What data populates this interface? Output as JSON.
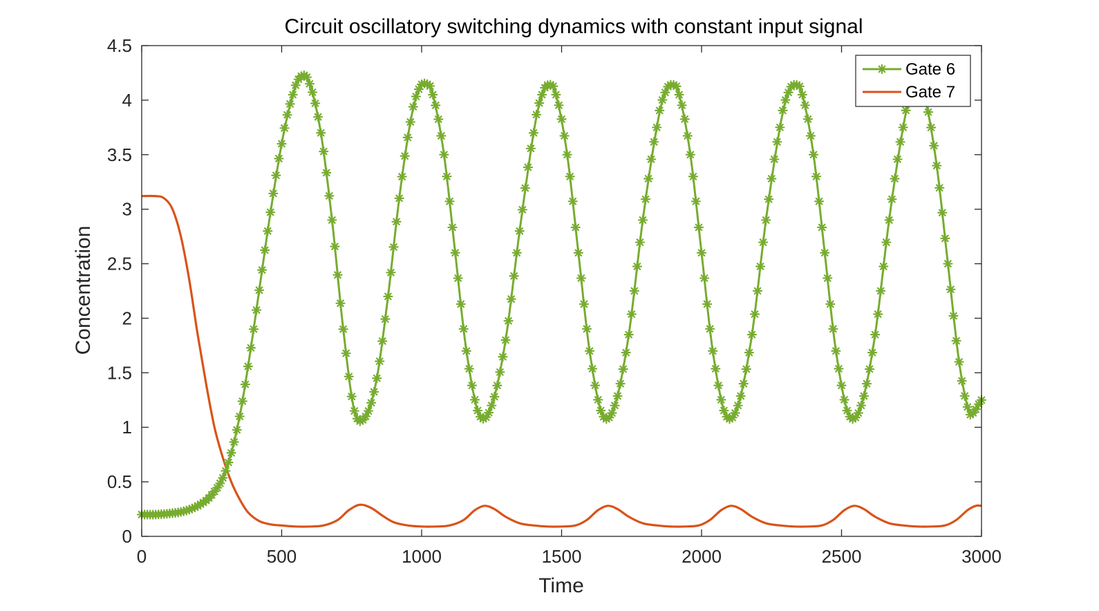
{
  "chart_data": {
    "type": "line",
    "title": "Circuit oscillatory switching dynamics with constant input signal",
    "xlabel": "Time",
    "ylabel": "Concentration",
    "xlim": [
      0,
      3000
    ],
    "ylim": [
      0,
      4.5
    ],
    "xticks": [
      0,
      500,
      1000,
      1500,
      2000,
      2500,
      3000
    ],
    "xtick_labels": [
      "0",
      "500",
      "1000",
      "1500",
      "2000",
      "2500",
      "3000"
    ],
    "yticks": [
      0,
      0.5,
      1,
      1.5,
      2,
      2.5,
      3,
      3.5,
      4,
      4.5
    ],
    "ytick_labels": [
      "0",
      "0.5",
      "1",
      "1.5",
      "2",
      "2.5",
      "3",
      "3.5",
      "4",
      "4.5"
    ],
    "grid": false,
    "legend_position": "top-right",
    "series": [
      {
        "name": "Gate 6",
        "color": "#77AC30",
        "marker": "asterisk",
        "x": [
          0,
          50,
          100,
          150,
          200,
          250,
          300,
          350,
          400,
          450,
          500,
          540,
          570,
          600,
          640,
          680,
          720,
          760,
          800,
          840,
          880,
          920,
          960,
          990,
          1015,
          1040,
          1080,
          1120,
          1160,
          1205,
          1250,
          1300,
          1350,
          1400,
          1430,
          1455,
          1480,
          1520,
          1560,
          1600,
          1645,
          1690,
          1740,
          1790,
          1840,
          1870,
          1895,
          1920,
          1960,
          2000,
          2040,
          2085,
          2130,
          2180,
          2230,
          2280,
          2310,
          2335,
          2360,
          2400,
          2440,
          2480,
          2525,
          2570,
          2620,
          2670,
          2720,
          2750,
          2775,
          2800,
          2840,
          2880,
          2920,
          2955,
          2975,
          3000
        ],
        "y": [
          0.2,
          0.2,
          0.21,
          0.23,
          0.28,
          0.38,
          0.6,
          1.1,
          1.9,
          2.8,
          3.6,
          4.05,
          4.22,
          4.15,
          3.7,
          2.9,
          1.9,
          1.15,
          1.1,
          1.45,
          2.2,
          3.1,
          3.8,
          4.1,
          4.15,
          4.05,
          3.5,
          2.6,
          1.7,
          1.12,
          1.2,
          1.8,
          2.8,
          3.7,
          4.05,
          4.14,
          4.05,
          3.5,
          2.6,
          1.7,
          1.12,
          1.2,
          1.85,
          2.9,
          3.75,
          4.07,
          4.14,
          4.05,
          3.5,
          2.6,
          1.7,
          1.12,
          1.2,
          1.85,
          2.9,
          3.75,
          4.07,
          4.14,
          4.05,
          3.5,
          2.6,
          1.7,
          1.12,
          1.2,
          1.85,
          2.9,
          3.75,
          4.07,
          4.12,
          4.0,
          3.4,
          2.5,
          1.6,
          1.15,
          1.15,
          1.25
        ]
      },
      {
        "name": "Gate 7",
        "color": "#D95319",
        "marker": "none",
        "x": [
          0,
          50,
          80,
          110,
          140,
          170,
          200,
          230,
          260,
          290,
          320,
          350,
          380,
          420,
          460,
          500,
          550,
          600,
          650,
          700,
          740,
          780,
          820,
          860,
          900,
          950,
          1000,
          1050,
          1100,
          1150,
          1190,
          1225,
          1260,
          1300,
          1350,
          1400,
          1450,
          1500,
          1550,
          1590,
          1630,
          1665,
          1700,
          1740,
          1790,
          1840,
          1890,
          1940,
          1990,
          2030,
          2070,
          2105,
          2140,
          2180,
          2230,
          2280,
          2330,
          2380,
          2430,
          2470,
          2510,
          2545,
          2580,
          2620,
          2670,
          2720,
          2770,
          2820,
          2870,
          2910,
          2950,
          2980,
          3000
        ],
        "y": [
          3.12,
          3.12,
          3.1,
          3.0,
          2.75,
          2.35,
          1.85,
          1.4,
          1.0,
          0.72,
          0.5,
          0.34,
          0.22,
          0.14,
          0.11,
          0.1,
          0.09,
          0.09,
          0.1,
          0.15,
          0.24,
          0.29,
          0.26,
          0.19,
          0.13,
          0.1,
          0.09,
          0.09,
          0.1,
          0.15,
          0.24,
          0.28,
          0.25,
          0.18,
          0.12,
          0.1,
          0.09,
          0.09,
          0.1,
          0.15,
          0.24,
          0.28,
          0.25,
          0.18,
          0.12,
          0.1,
          0.09,
          0.09,
          0.1,
          0.15,
          0.24,
          0.28,
          0.25,
          0.18,
          0.12,
          0.1,
          0.09,
          0.09,
          0.1,
          0.15,
          0.24,
          0.28,
          0.25,
          0.18,
          0.12,
          0.1,
          0.09,
          0.09,
          0.1,
          0.15,
          0.24,
          0.28,
          0.28
        ]
      }
    ]
  }
}
